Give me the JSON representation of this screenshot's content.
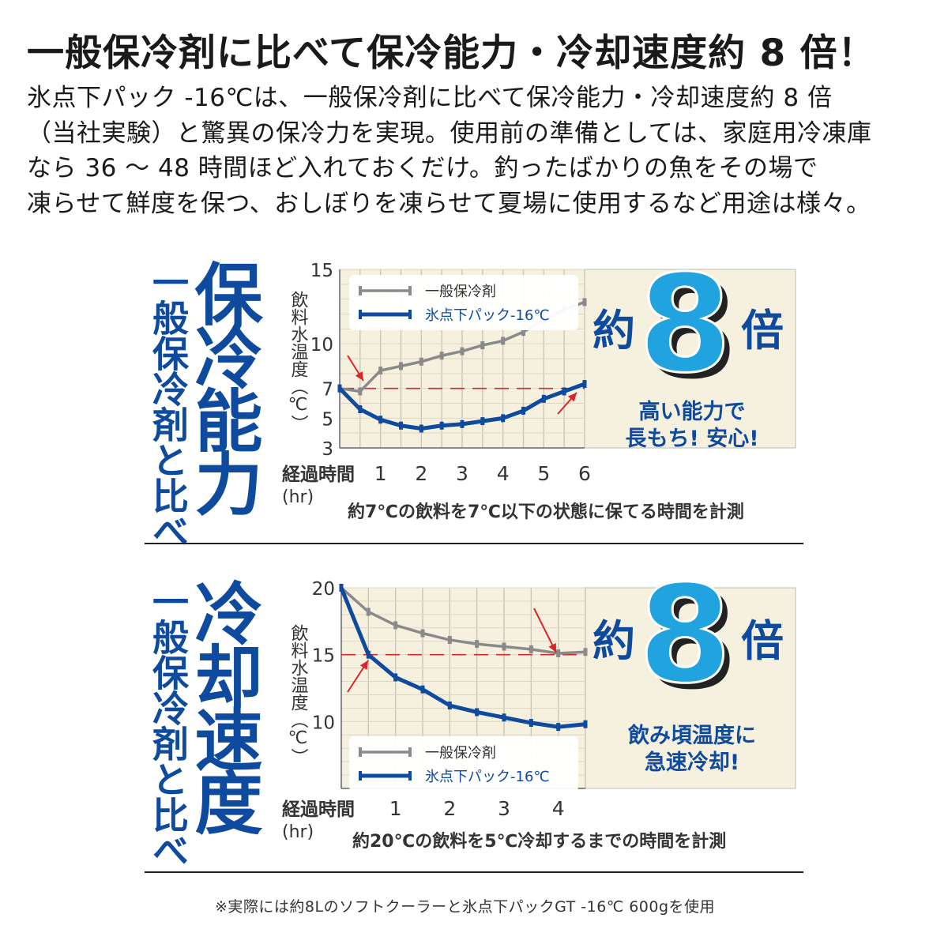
{
  "headline": "一般保冷剤に比べて保冷能力・冷却速度約 8 倍！",
  "description": [
    "氷点下パック -16℃は、一般保冷剤に比べて保冷能力・冷却速度約 8 倍",
    "（当社実験）と驚異の保冷力を実現。使用前の準備としては、家庭用冷凍庫",
    "なら 36 ～ 48 時間ほど入れておくだけ。釣ったばかりの魚をその場で",
    "凍らせて鮮度を保つ、おしぼりを凍らせて夏場に使用するなど用途は様々。"
  ],
  "colors": {
    "blue": "#0e4a9e",
    "sky": "#21a3e0",
    "gray_line": "#8a8a8a",
    "plot_bg": "#f6f0df",
    "red": "#d8262b"
  },
  "footnote": "※実際には約8Lのソフトクーラーと氷点下パックGT -16℃ 600gを使用",
  "chart_data": [
    {
      "type": "line",
      "side_title": "保冷能力",
      "side_subtitle": "一般保冷剤と比べ",
      "ylabel": "飲料水温度（℃）",
      "xlabel": "経過時間",
      "xunit": "(hr)",
      "xlim": [
        0,
        6
      ],
      "ylim": [
        3,
        15
      ],
      "yticks": [
        3,
        5,
        7,
        10,
        15
      ],
      "xticks": [
        1,
        2,
        3,
        4,
        5,
        6
      ],
      "grid": true,
      "reference_y": 7,
      "legend_position": "top",
      "series": [
        {
          "name": "一般保冷剤",
          "x": [
            0,
            0.5,
            1,
            1.5,
            2,
            2.5,
            3,
            3.5,
            4,
            4.5,
            5,
            5.5,
            6
          ],
          "values": [
            7,
            6.8,
            8.2,
            8.5,
            8.8,
            9.2,
            9.5,
            9.9,
            10.2,
            10.8,
            11.6,
            12.3,
            12.8
          ]
        },
        {
          "name": "氷点下パック-16℃",
          "x": [
            0,
            0.5,
            1,
            1.5,
            2,
            2.5,
            3,
            3.5,
            4,
            4.5,
            5,
            5.5,
            6
          ],
          "values": [
            7,
            5.6,
            4.9,
            4.5,
            4.3,
            4.5,
            4.6,
            4.8,
            5.0,
            5.5,
            6.3,
            6.8,
            7.3
          ]
        }
      ],
      "badge_prefix": "約",
      "badge_number": "8",
      "badge_suffix": "倍",
      "badge_caption": [
        "高い能力で",
        "長もち! 安心!"
      ],
      "note": "約7℃の飲料を7℃以下の状態に保てる時間を計測"
    },
    {
      "type": "line",
      "side_title": "冷却速度",
      "side_subtitle": "一般保冷剤と比べ",
      "ylabel": "飲料水温度（℃）",
      "xlabel": "経過時間",
      "xunit": "(hr)",
      "xlim": [
        0,
        4.5
      ],
      "ylim": [
        5,
        20
      ],
      "yticks": [
        10,
        15,
        20
      ],
      "xticks": [
        1,
        2,
        3,
        4
      ],
      "grid": true,
      "reference_y": 15,
      "legend_position": "bottom",
      "series": [
        {
          "name": "一般保冷剤",
          "x": [
            0,
            0.5,
            1,
            1.5,
            2,
            2.5,
            3,
            3.5,
            4,
            4.5
          ],
          "values": [
            20,
            18.2,
            17.2,
            16.6,
            16.1,
            15.8,
            15.6,
            15.4,
            15.1,
            15.2
          ]
        },
        {
          "name": "氷点下パック-16℃",
          "x": [
            0,
            0.5,
            1,
            1.5,
            2,
            2.5,
            3,
            3.5,
            4,
            4.5
          ],
          "values": [
            20,
            15,
            13.3,
            12.4,
            11.2,
            10.7,
            10.3,
            9.9,
            9.6,
            9.8
          ]
        }
      ],
      "badge_prefix": "約",
      "badge_number": "8",
      "badge_suffix": "倍",
      "badge_caption": [
        "飲み頃温度に",
        "急速冷却!"
      ],
      "note": "約20℃の飲料を5℃冷却するまでの時間を計測"
    }
  ]
}
